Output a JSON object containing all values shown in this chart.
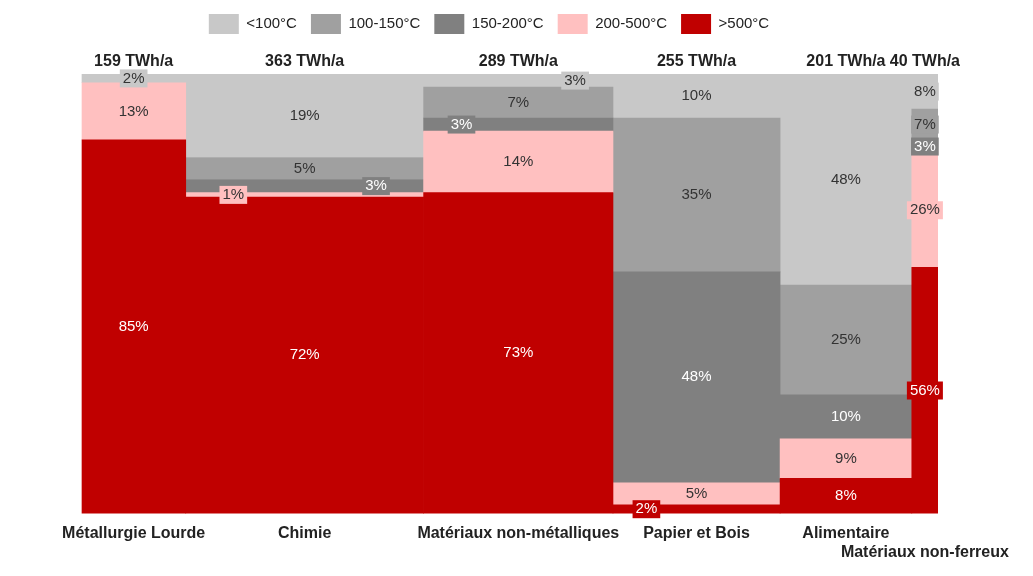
{
  "chart_data": {
    "type": "other",
    "legend": "top",
    "categories": [
      "Métallurgie Lourde",
      "Chimie",
      "Matériaux non-métalliques",
      "Papier et Bois",
      "Alimentaire",
      "Matériaux non-ferreux"
    ],
    "annotations": [
      {
        "text": "159 TWh/a",
        "x": "Métallurgie Lourde"
      },
      {
        "text": "363 TWh/a",
        "x": "Chimie"
      },
      {
        "text": "289 TWh/a",
        "x": "Matériaux non-métalliques"
      },
      {
        "text": "255 TWh/a",
        "x": "Papier et Bois"
      },
      {
        "text": "201 TWh/a",
        "x": "Alimentaire"
      },
      {
        "text": "40 TWh/a",
        "x": "Matériaux non-ferreux"
      }
    ],
    "series": [
      {
        "name": ">500°C",
        "color": "#c00000",
        "values": [
          85,
          72,
          73,
          2,
          8,
          56
        ],
        "value_labels": [
          "85%",
          "72%",
          "73%",
          "2%",
          "8%",
          "56%"
        ]
      },
      {
        "name": "200-500°C",
        "color": "#ffc0c0",
        "values": [
          13,
          1,
          14,
          5,
          9,
          26
        ],
        "value_labels": [
          "13%",
          "1%",
          "14%",
          "5%",
          "9%",
          "26%"
        ]
      },
      {
        "name": "150-200°C",
        "color": "#808080",
        "values": [
          null,
          3,
          3,
          48,
          10,
          3
        ],
        "value_labels": [
          null,
          "3%",
          "3%",
          "48%",
          "10%",
          "3%"
        ]
      },
      {
        "name": "100-150°C",
        "color": "#a0a0a0",
        "values": [
          null,
          5,
          7,
          35,
          25,
          7
        ],
        "value_labels": [
          null,
          "5%",
          "7%",
          "35%",
          "25%",
          "7%"
        ]
      },
      {
        "name": "<100°C",
        "color": "#c8c8c8",
        "values": [
          2,
          19,
          3,
          10,
          48,
          8
        ],
        "value_labels": [
          "2%",
          "19%",
          "3%",
          "10%",
          "48%",
          "8%"
        ]
      }
    ]
  }
}
